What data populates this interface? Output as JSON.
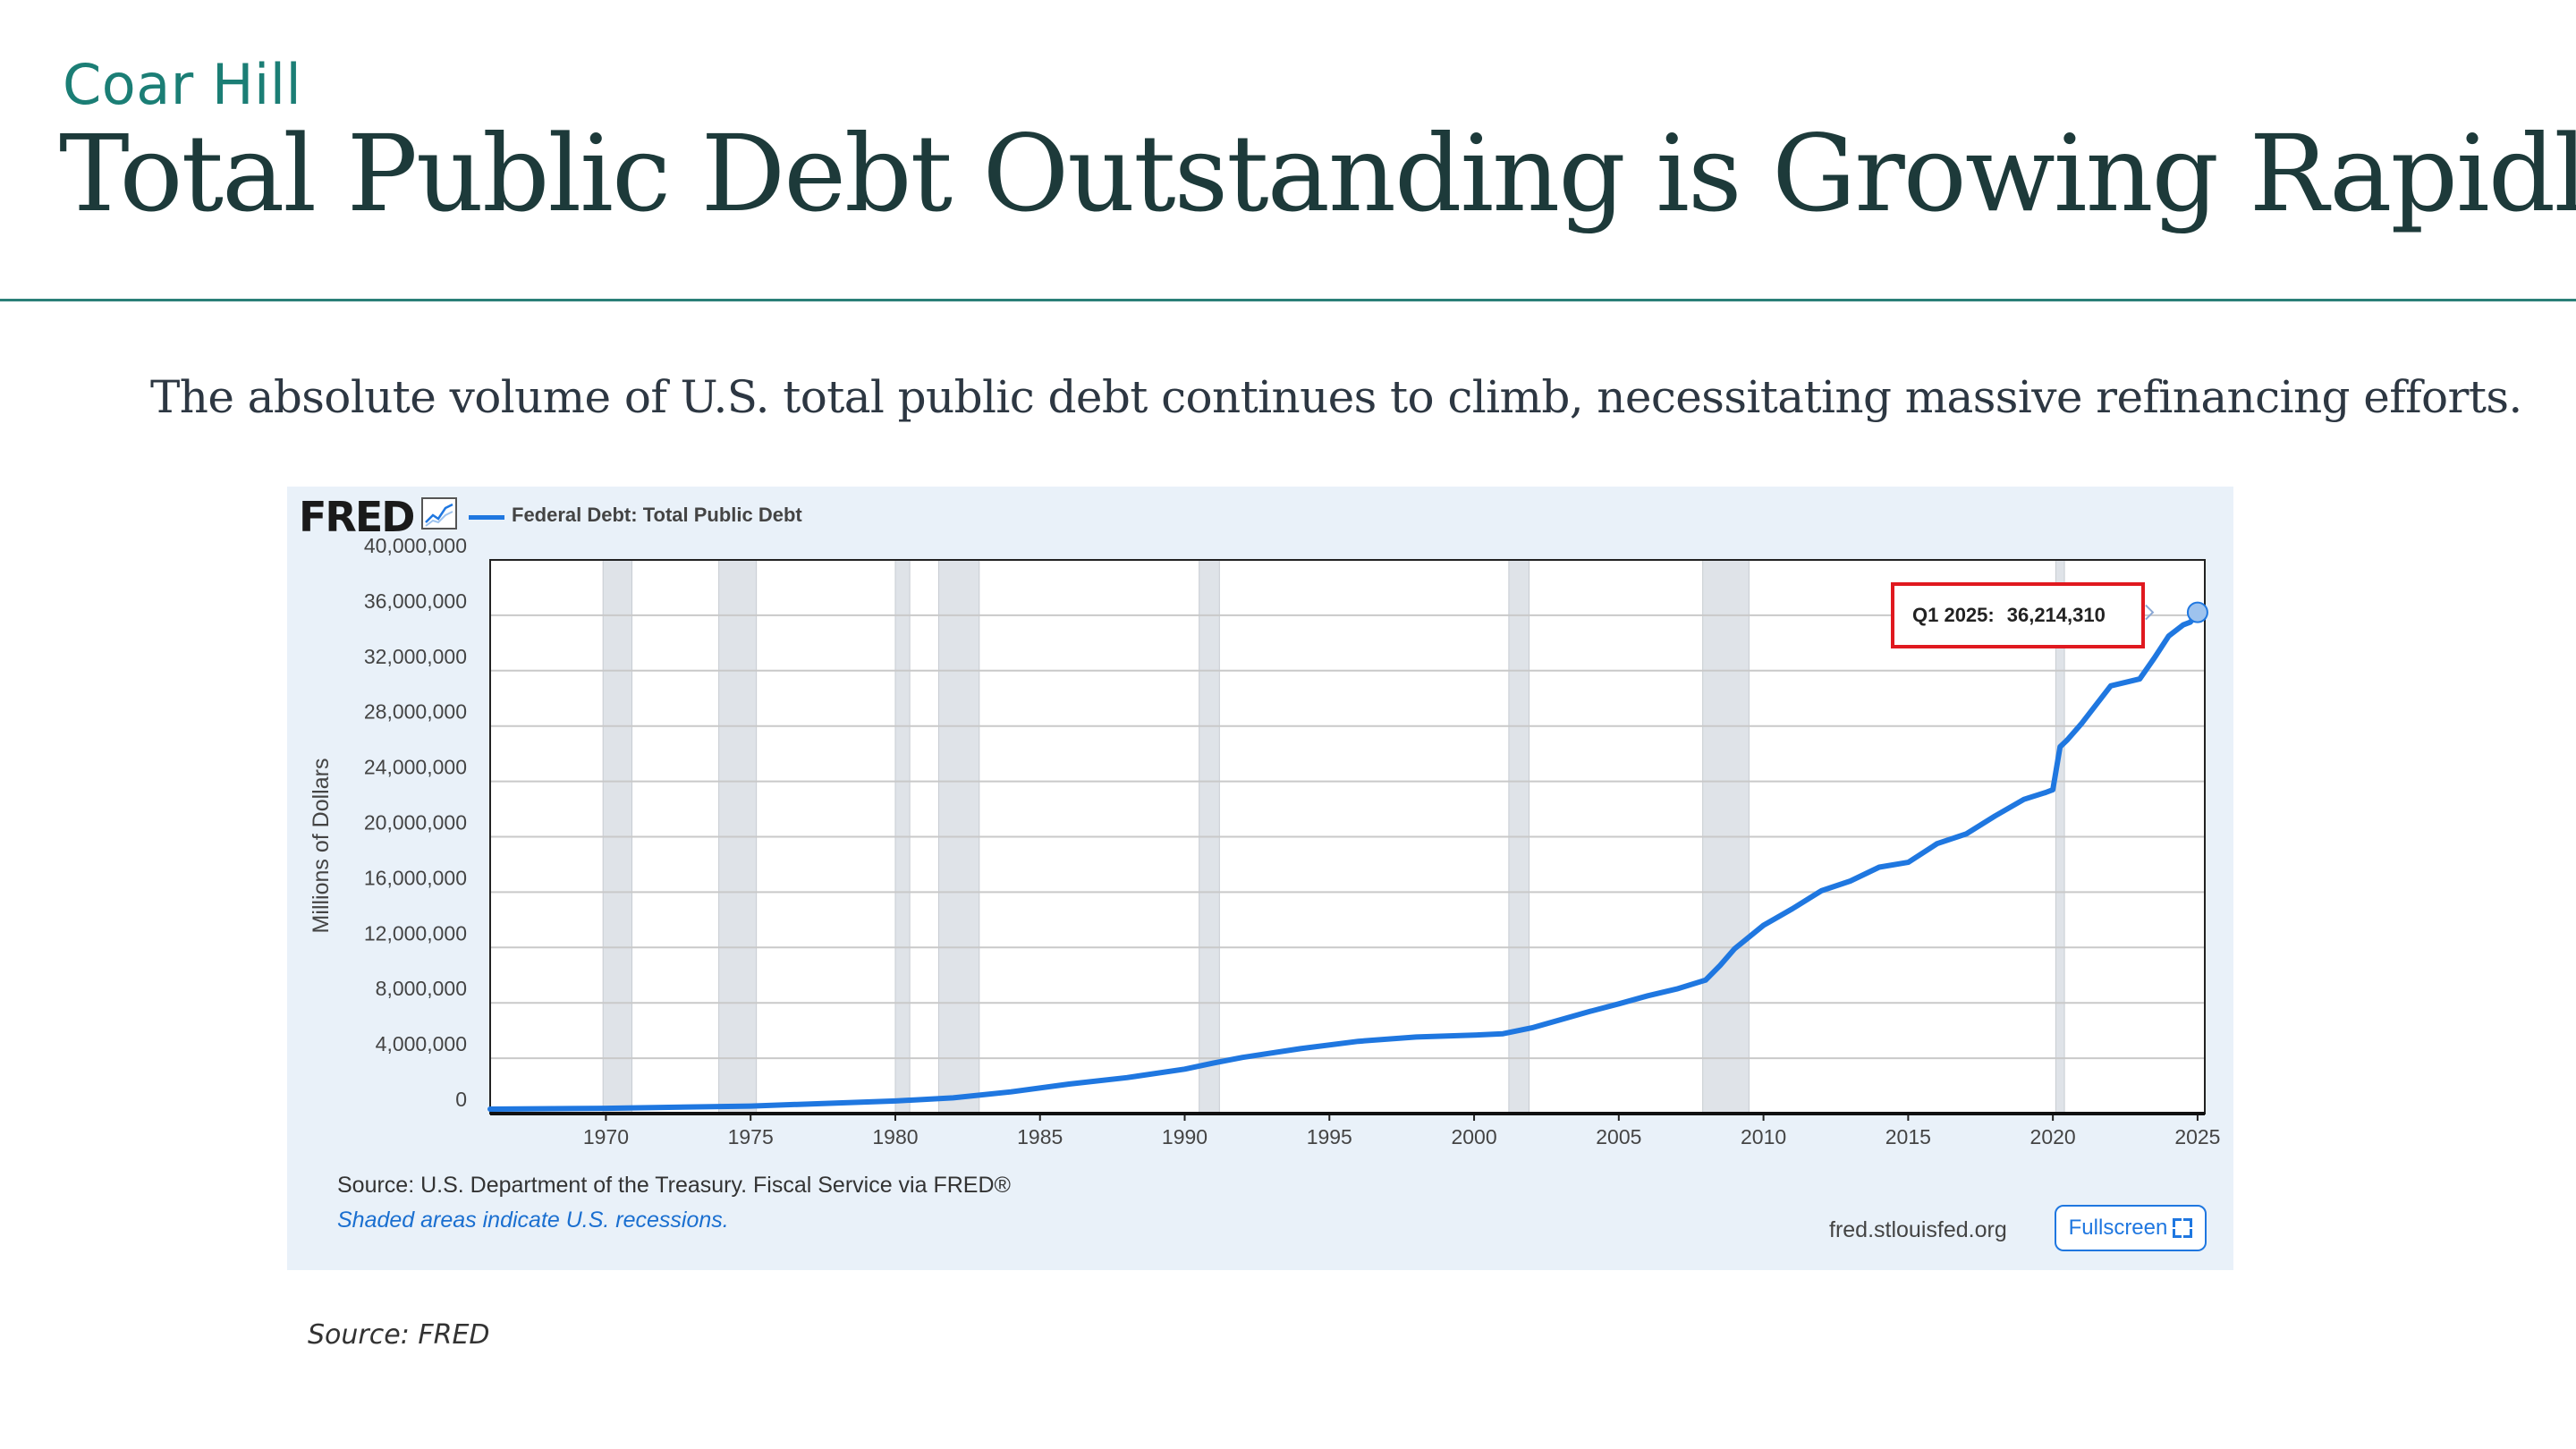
{
  "slide": {
    "brand": "Coar Hill",
    "title": "Total Public Debt Outstanding is Growing Rapidly",
    "subtitle": "The absolute volume of U.S. total public debt continues to climb, necessitating massive refinancing efforts.",
    "source_note": "Source: FRED"
  },
  "fred": {
    "logo": "FRED",
    "logo_icon": "line-chart-icon",
    "source": "Source: U.S. Department of the Treasury. Fiscal Service via FRED®",
    "shade_note": "Shaded areas indicate U.S. recessions.",
    "site": "fred.stlouisfed.org",
    "fullscreen_label": "Fullscreen",
    "fullscreen_icon": "fullscreen-icon",
    "tooltip_label": "Q1 2025:",
    "tooltip_value": "36,214,310",
    "tooltip_border_color": "#e0191f"
  },
  "chart_data": {
    "type": "line",
    "title": "",
    "xlabel": "",
    "ylabel": "Millions of Dollars",
    "xlim": [
      1966,
      2025.25
    ],
    "ylim": [
      0,
      40000000
    ],
    "yticks": [
      0,
      4000000,
      8000000,
      12000000,
      16000000,
      20000000,
      24000000,
      28000000,
      32000000,
      36000000,
      40000000
    ],
    "ytick_labels": [
      "0",
      "4,000,000",
      "8,000,000",
      "12,000,000",
      "16,000,000",
      "20,000,000",
      "24,000,000",
      "28,000,000",
      "32,000,000",
      "36,000,000",
      "40,000,000"
    ],
    "xticks": [
      1970,
      1975,
      1980,
      1985,
      1990,
      1995,
      2000,
      2005,
      2010,
      2015,
      2020,
      2025
    ],
    "xtick_labels": [
      "1970",
      "1975",
      "1980",
      "1985",
      "1990",
      "1995",
      "2000",
      "2005",
      "2010",
      "2015",
      "2020",
      "2025"
    ],
    "grid": true,
    "legend": "top-left",
    "line_color": "#1f77e0",
    "recession_color": "#dfe3e8",
    "recessions": [
      [
        1969.9,
        1970.9
      ],
      [
        1973.9,
        1975.2
      ],
      [
        1980.0,
        1980.5
      ],
      [
        1981.5,
        1982.9
      ],
      [
        1990.5,
        1991.2
      ],
      [
        2001.2,
        2001.9
      ],
      [
        2007.9,
        2009.5
      ],
      [
        2020.1,
        2020.4
      ]
    ],
    "series": [
      {
        "name": "Federal Debt: Total Public Debt",
        "x": [
          1966,
          1970,
          1975,
          1980,
          1982,
          1984,
          1986,
          1988,
          1990,
          1991,
          1992,
          1994,
          1996,
          1998,
          2000,
          2001,
          2002,
          2004,
          2005,
          2006,
          2007,
          2008,
          2008.5,
          2009,
          2010,
          2011,
          2012,
          2013,
          2014,
          2015,
          2016,
          2017,
          2018,
          2019,
          2019.75,
          2020.0,
          2020.25,
          2020.5,
          2021,
          2022,
          2023,
          2023.5,
          2024,
          2024.5,
          2024.75,
          2025,
          2025.25
        ],
        "y": [
          320000,
          380000,
          540000,
          910000,
          1140000,
          1570000,
          2130000,
          2600000,
          3210000,
          3660000,
          4060000,
          4690000,
          5220000,
          5530000,
          5670000,
          5770000,
          6200000,
          7380000,
          7930000,
          8510000,
          9000000,
          9650000,
          10700000,
          11900000,
          13600000,
          14800000,
          16100000,
          16800000,
          17800000,
          18150000,
          19500000,
          20200000,
          21500000,
          22700000,
          23200000,
          23400000,
          26500000,
          27000000,
          28200000,
          30900000,
          31400000,
          32900000,
          34500000,
          35300000,
          35500000,
          36214310,
          36300000
        ]
      }
    ]
  }
}
